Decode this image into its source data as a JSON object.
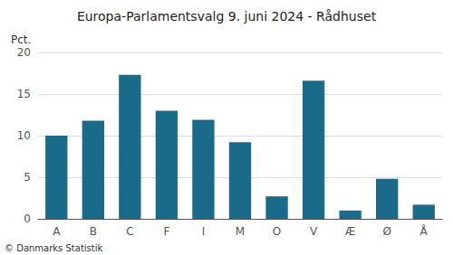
{
  "chart_data": {
    "type": "bar",
    "title": "Europa-Parlamentsvalg 9. juni 2024 - Rådhuset",
    "ylabel": "Pct.",
    "footer": "© Danmarks Statistik",
    "categories": [
      "A",
      "B",
      "C",
      "F",
      "I",
      "M",
      "O",
      "V",
      "Æ",
      "Ø",
      "Å"
    ],
    "values": [
      10.0,
      11.8,
      17.3,
      13.0,
      11.9,
      9.2,
      2.7,
      16.6,
      1.0,
      4.8,
      1.7
    ],
    "color": "#1a6a8a",
    "ylim": [
      0,
      20
    ],
    "yticks": [
      0,
      5,
      10,
      15,
      20
    ],
    "grid": true
  }
}
